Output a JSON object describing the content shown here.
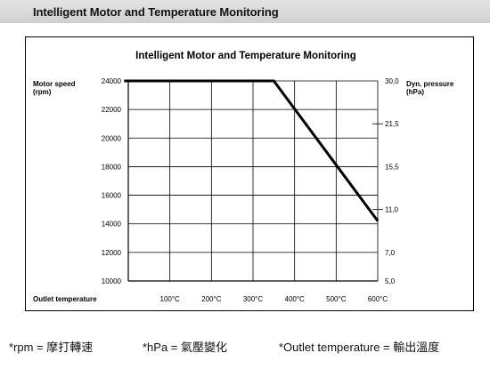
{
  "banner": {
    "title": "Intelligent Motor and Temperature Monitoring"
  },
  "chart_data": {
    "type": "line",
    "title": "Intelligent Motor and Temperature Monitoring",
    "ylabel": [
      "Motor speed",
      "(rpm)"
    ],
    "y2label": [
      "Dyn. pressure",
      "(hPa)"
    ],
    "xlabel": "Outlet temperature",
    "xlim": [
      0,
      600
    ],
    "ylim": [
      10000,
      24000
    ],
    "x_ticks": [
      100,
      200,
      300,
      400,
      500,
      600
    ],
    "x_tick_labels": [
      "100°C",
      "200°C",
      "300°C",
      "400°C",
      "500°C",
      "600°C"
    ],
    "y_ticks": [
      10000,
      12000,
      14000,
      16000,
      18000,
      20000,
      22000,
      24000
    ],
    "y_tick_labels": [
      "10000",
      "12000",
      "14000",
      "16000",
      "18000",
      "20000",
      "22000",
      "24000"
    ],
    "right_axis": {
      "labels": [
        "30,0",
        "21,5",
        "15,5",
        "11,0",
        "7,0",
        "5,0"
      ],
      "at_y": [
        24000,
        21000,
        18000,
        15000,
        12000,
        10000
      ],
      "tick_marks": [
        21000,
        15000
      ]
    },
    "grid": true,
    "series": [
      {
        "x": [
          -10,
          350,
          600
        ],
        "values": [
          24000,
          24000,
          14200
        ]
      }
    ]
  },
  "footnotes": [
    {
      "text": "*rpm = 摩打轉速"
    },
    {
      "text": "*hPa = 氣壓變化"
    },
    {
      "text": "*Outlet temperature = 輸出溫度"
    }
  ]
}
